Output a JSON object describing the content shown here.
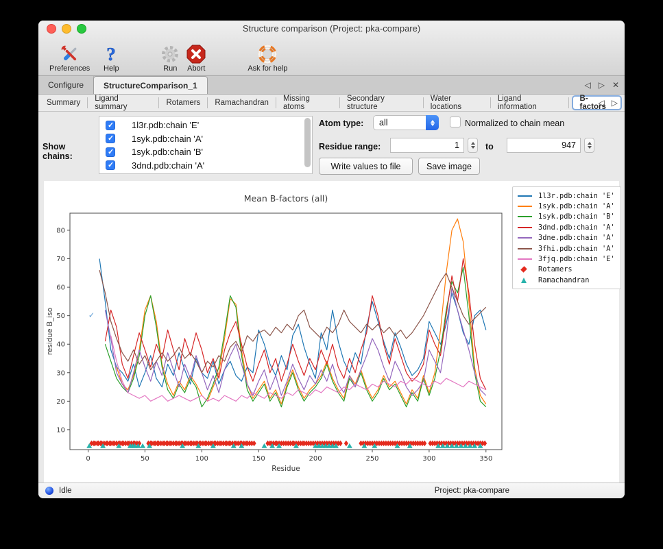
{
  "window": {
    "title": "Structure comparison (Project: pka-compare)"
  },
  "icons": {
    "prev": "◁",
    "next": "▷",
    "close": "✕"
  },
  "toolbar": {
    "items": [
      {
        "label": "Preferences",
        "icon": "tools-icon"
      },
      {
        "label": "Help",
        "icon": "question-icon"
      },
      {
        "label": "Run",
        "icon": "gear-icon"
      },
      {
        "label": "Abort",
        "icon": "abort-icon"
      },
      {
        "label": "Ask for help",
        "icon": "lifebuoy-icon"
      }
    ]
  },
  "tabs_top": {
    "items": [
      {
        "label": "Configure",
        "selected": false
      },
      {
        "label": "StructureComparison_1",
        "selected": true
      }
    ]
  },
  "tabs_sub": {
    "items": [
      {
        "label": "Summary",
        "selected": false
      },
      {
        "label": "Ligand summary",
        "selected": false
      },
      {
        "label": "Rotamers",
        "selected": false
      },
      {
        "label": "Ramachandran",
        "selected": false
      },
      {
        "label": "Missing atoms",
        "selected": false
      },
      {
        "label": "Secondary structure",
        "selected": false
      },
      {
        "label": "Water locations",
        "selected": false
      },
      {
        "label": "Ligand information",
        "selected": false
      },
      {
        "label": "B-factors",
        "selected": true
      }
    ]
  },
  "controls": {
    "show_chains_label": "Show chains:",
    "chains": [
      {
        "label": "1l3r.pdb:chain 'E'",
        "checked": true
      },
      {
        "label": "1syk.pdb:chain 'A'",
        "checked": true
      },
      {
        "label": "1syk.pdb:chain 'B'",
        "checked": true
      },
      {
        "label": "3dnd.pdb:chain 'A'",
        "checked": true
      }
    ],
    "atom_type_label": "Atom type:",
    "atom_type_value": "all",
    "normalized_label": "Normalized to chain mean",
    "normalized_checked": false,
    "residue_range_label": "Residue range:",
    "range_from": "1",
    "range_to_word": "to",
    "range_to": "947",
    "write_button": "Write values to file",
    "save_button": "Save image"
  },
  "chart_data": {
    "type": "line",
    "title": "Mean B-factors (all)",
    "xlabel": "Residue",
    "ylabel": "residue B_iso",
    "xlim": [
      -16,
      364
    ],
    "ylim": [
      3,
      86
    ],
    "xticks": [
      0,
      50,
      100,
      150,
      200,
      250,
      300,
      350
    ],
    "yticks": [
      10,
      20,
      30,
      40,
      50,
      60,
      70,
      80
    ],
    "legend_position": "top-right",
    "series": [
      {
        "name": "1l3r.pdb:chain 'E'",
        "color": "#1f77b4",
        "x_start": 10,
        "x_step": 5,
        "values": [
          70,
          55,
          38,
          32,
          30,
          27,
          33,
          25,
          30,
          36,
          28,
          25,
          33,
          29,
          37,
          31,
          26,
          35,
          30,
          28,
          34,
          26,
          31,
          34,
          29,
          27,
          32,
          30,
          45,
          40,
          33,
          29,
          36,
          31,
          43,
          47,
          39,
          33,
          28,
          44,
          38,
          52,
          41,
          34,
          30,
          37,
          33,
          46,
          55,
          48,
          41,
          35,
          44,
          39,
          33,
          29,
          31,
          35,
          48,
          44,
          40,
          47,
          58,
          52,
          44,
          40,
          50,
          52,
          45
        ]
      },
      {
        "name": "1syk.pdb:chain 'A'",
        "color": "#ff7f0e",
        "x_start": 10,
        "x_step": 5,
        "values": [
          null,
          null,
          null,
          32,
          26,
          24,
          29,
          38,
          52,
          57,
          48,
          33,
          26,
          22,
          27,
          24,
          29,
          26,
          22,
          20,
          25,
          30,
          42,
          56,
          54,
          38,
          26,
          21,
          24,
          27,
          21,
          24,
          19,
          26,
          31,
          25,
          21,
          24,
          26,
          29,
          34,
          28,
          24,
          21,
          29,
          26,
          31,
          25,
          21,
          24,
          29,
          25,
          27,
          23,
          19,
          24,
          21,
          29,
          23,
          30,
          45,
          65,
          80,
          84,
          76,
          55,
          32,
          22,
          19
        ]
      },
      {
        "name": "1syk.pdb:chain 'B'",
        "color": "#2ca02c",
        "x_start": 10,
        "x_step": 5,
        "values": [
          null,
          40,
          34,
          28,
          25,
          23,
          28,
          36,
          50,
          57,
          46,
          32,
          24,
          21,
          26,
          23,
          28,
          25,
          18,
          21,
          26,
          32,
          44,
          57,
          53,
          36,
          24,
          20,
          23,
          26,
          20,
          23,
          18,
          25,
          30,
          24,
          20,
          23,
          25,
          28,
          33,
          27,
          23,
          20,
          28,
          25,
          30,
          24,
          20,
          23,
          28,
          24,
          26,
          22,
          18,
          23,
          20,
          28,
          22,
          28,
          38,
          52,
          62,
          58,
          67,
          50,
          30,
          20,
          18
        ]
      },
      {
        "name": "3dnd.pdb:chain 'A'",
        "color": "#d62728",
        "x_start": 10,
        "x_step": 5,
        "values": [
          null,
          41,
          52,
          46,
          33,
          28,
          36,
          44,
          38,
          32,
          40,
          35,
          45,
          38,
          31,
          42,
          36,
          44,
          38,
          30,
          35,
          28,
          38,
          44,
          48,
          40,
          32,
          27,
          33,
          38,
          30,
          35,
          27,
          33,
          40,
          34,
          29,
          35,
          31,
          38,
          33,
          40,
          32,
          28,
          35,
          30,
          38,
          44,
          57,
          50,
          40,
          33,
          42,
          36,
          30,
          27,
          29,
          33,
          45,
          40,
          36,
          50,
          64,
          55,
          70,
          58,
          40,
          28,
          24
        ]
      },
      {
        "name": "3dne.pdb:chain 'A'",
        "color": "#9467bd",
        "x_start": 10,
        "x_step": 5,
        "values": [
          null,
          52,
          42,
          30,
          26,
          23,
          30,
          38,
          32,
          27,
          34,
          29,
          37,
          31,
          25,
          33,
          28,
          36,
          30,
          24,
          29,
          23,
          31,
          36,
          40,
          33,
          26,
          22,
          27,
          31,
          24,
          29,
          22,
          27,
          33,
          28,
          24,
          29,
          26,
          31,
          27,
          33,
          26,
          23,
          29,
          25,
          31,
          36,
          42,
          38,
          32,
          27,
          34,
          30,
          25,
          22,
          24,
          27,
          38,
          34,
          30,
          42,
          60,
          52,
          45,
          38,
          30,
          24,
          22
        ]
      },
      {
        "name": "3fhi.pdb:chain 'A'",
        "color": "#8c564b",
        "x_start": 10,
        "x_step": 5,
        "values": [
          66,
          58,
          48,
          42,
          37,
          34,
          38,
          33,
          36,
          31,
          34,
          37,
          34,
          36,
          39,
          35,
          37,
          34,
          30,
          34,
          32,
          36,
          34,
          39,
          41,
          37,
          43,
          41,
          44,
          45,
          43,
          46,
          44,
          47,
          45,
          50,
          52,
          46,
          44,
          42,
          46,
          44,
          47,
          52,
          48,
          46,
          44,
          47,
          45,
          47,
          44,
          46,
          43,
          45,
          42,
          44,
          47,
          50,
          54,
          58,
          62,
          65,
          60,
          55,
          50,
          47,
          49,
          51,
          53
        ]
      },
      {
        "name": "3fjq.pdb:chain 'E'",
        "color": "#e377c2",
        "x_start": 10,
        "x_step": 5,
        "values": [
          null,
          null,
          43,
          34,
          27,
          23,
          22,
          21,
          22,
          20,
          21,
          22,
          20,
          21,
          22,
          21,
          20,
          21,
          22,
          20,
          21,
          20,
          22,
          21,
          20,
          22,
          21,
          23,
          22,
          21,
          23,
          22,
          21,
          23,
          22,
          24,
          23,
          22,
          24,
          23,
          25,
          24,
          23,
          25,
          24,
          26,
          25,
          24,
          26,
          25,
          27,
          26,
          25,
          27,
          26,
          28,
          27,
          26,
          25,
          27,
          26,
          28,
          27,
          26,
          25,
          27,
          26,
          25,
          24
        ]
      }
    ],
    "markers": [
      {
        "name": "Rotamers",
        "shape": "diamond",
        "color": "#e42a1d",
        "y": 5.2,
        "x": [
          3,
          5,
          6,
          8,
          9,
          11,
          12,
          14,
          16,
          17,
          19,
          20,
          22,
          23,
          25,
          27,
          28,
          30,
          31,
          33,
          35,
          36,
          38,
          40,
          41,
          43,
          45,
          53,
          55,
          56,
          58,
          59,
          61,
          62,
          64,
          66,
          67,
          69,
          70,
          72,
          73,
          75,
          77,
          78,
          80,
          82,
          83,
          85,
          86,
          88,
          90,
          91,
          93,
          95,
          96,
          98,
          99,
          101,
          103,
          104,
          106,
          108,
          109,
          111,
          112,
          114,
          116,
          117,
          119,
          121,
          122,
          124,
          125,
          127,
          129,
          130,
          132,
          134,
          135,
          137,
          139,
          140,
          142,
          144,
          146,
          158,
          160,
          161,
          163,
          165,
          166,
          168,
          170,
          172,
          174,
          176,
          178,
          180,
          181,
          183,
          185,
          187,
          189,
          190,
          192,
          194,
          196,
          198,
          200,
          202,
          204,
          206,
          208,
          210,
          212,
          214,
          216,
          218,
          220,
          222,
          227,
          240,
          242,
          244,
          246,
          248,
          250,
          252,
          254,
          256,
          258,
          260,
          262,
          264,
          266,
          268,
          270,
          272,
          274,
          276,
          278,
          280,
          282,
          284,
          286,
          288,
          290,
          292,
          294,
          296,
          301,
          303,
          305,
          307,
          309,
          311,
          313,
          315,
          317,
          319,
          321,
          323,
          325,
          327,
          329,
          331,
          333,
          335,
          337,
          339,
          341,
          343,
          345,
          347,
          349
        ]
      },
      {
        "name": "Ramachandran",
        "shape": "triangle",
        "color": "#29b3ac",
        "y": 4.3,
        "x": [
          1,
          13,
          27,
          37,
          39,
          41,
          44,
          48,
          54,
          83,
          97,
          110,
          128,
          135,
          155,
          162,
          168,
          183,
          200,
          203,
          206,
          209,
          212,
          215,
          218,
          230,
          243,
          252,
          272,
          283,
          308,
          312,
          316,
          320,
          324,
          328,
          332,
          336,
          340,
          345
        ]
      }
    ],
    "annotation": {
      "glyph": "✓",
      "x": 3,
      "y": 50,
      "color": "#5b9bd5"
    }
  },
  "status": {
    "left": "Idle",
    "right": "Project: pka-compare"
  }
}
